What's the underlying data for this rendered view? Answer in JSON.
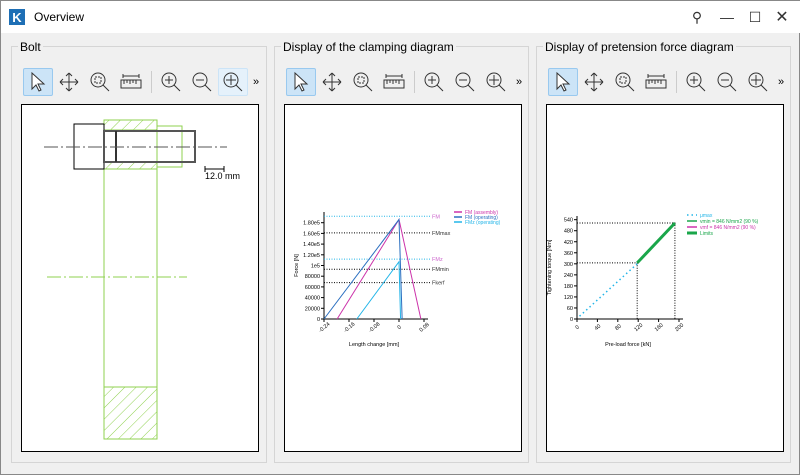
{
  "window": {
    "title": "Overview",
    "logo": "K"
  },
  "panels": [
    {
      "title": "Bolt",
      "scale_label": "12.0 mm"
    },
    {
      "title": "Display of the clamping diagram"
    },
    {
      "title": "Display of pretension force diagram"
    }
  ],
  "toolbar": {
    "icons": [
      "pointer-icon",
      "pan-icon",
      "zoom-window-icon",
      "measure-icon",
      "zoom-in-icon",
      "zoom-out-icon",
      "zoom-fit-icon"
    ],
    "more": "»"
  },
  "colors": {
    "green": "#8fd14f",
    "magenta": "#cc33aa",
    "blue": "#2a6fc0",
    "cyan": "#22b5e8",
    "limit": "#1aa64a"
  },
  "chart_data": [
    {
      "type": "line",
      "xlabel": "Length change [mm]",
      "ylabel": "Force [N]",
      "xlim": [
        -0.24,
        0.08
      ],
      "ylim": [
        0,
        200000
      ],
      "xticks": [
        "-0.24",
        "-0.16",
        "-0.08",
        "0",
        "0.08"
      ],
      "yticks": [
        "0",
        "20000",
        "40000",
        "60000",
        "80000",
        "1e5",
        "1.20e5",
        "1.40e5",
        "1.60e5",
        "1.80e5"
      ],
      "series": [
        {
          "name": "FM (assembly)",
          "color": "#cc33aa",
          "x": [
            -0.198,
            0,
            0.07
          ],
          "y": [
            0,
            186000,
            0
          ]
        },
        {
          "name": "FM (operating)",
          "color": "#2a6fc0",
          "x": [
            -0.24,
            0,
            0.01
          ],
          "y": [
            0,
            186000,
            0
          ]
        },
        {
          "name": "FMz (operating)",
          "color": "#22b5e8",
          "x": [
            -0.135,
            0,
            0.005
          ],
          "y": [
            0,
            107000,
            0
          ]
        }
      ],
      "reference_lines": [
        {
          "label": "FM",
          "y": 192000,
          "color": "#22b5e8"
        },
        {
          "label": "FMmax",
          "y": 161000,
          "color": "#000000"
        },
        {
          "label": "FMz",
          "y": 112000,
          "color": "#22b5e8"
        },
        {
          "label": "FMmin",
          "y": 93000,
          "color": "#000000"
        },
        {
          "label": "Fkerf",
          "y": 68000,
          "color": "#000000"
        }
      ],
      "legend": "top-right"
    },
    {
      "type": "line",
      "xlabel": "Pre-load force [kN]",
      "ylabel": "Tightening torque [Nm]",
      "xlim": [
        0,
        200
      ],
      "ylim": [
        0,
        560
      ],
      "xticks": [
        "0",
        "40",
        "80",
        "120",
        "160",
        "200"
      ],
      "yticks": [
        "0",
        "60",
        "120",
        "180",
        "240",
        "300",
        "360",
        "420",
        "480",
        "540"
      ],
      "series": [
        {
          "name": "μmax",
          "color": "#22b5e8",
          "style": "dotted",
          "x": [
            5,
            118
          ],
          "y": [
            15,
            300
          ]
        },
        {
          "name": "vmin = 846 N/mm2 (90 %)",
          "color": "#1aa64a",
          "x": [
            118,
            192
          ],
          "y": [
            305,
            522
          ]
        },
        {
          "name": "vmf = 846 N/mm2 (90 %)",
          "color": "#cc33aa",
          "x": [],
          "y": []
        },
        {
          "name": "Limits",
          "color": "#1aa64a",
          "x": [
            118,
            192
          ],
          "y": [
            305,
            522
          ]
        }
      ],
      "limits": [
        {
          "x": 118,
          "y": 305
        },
        {
          "x": 192,
          "y": 522
        }
      ],
      "legend": "top-right"
    }
  ]
}
